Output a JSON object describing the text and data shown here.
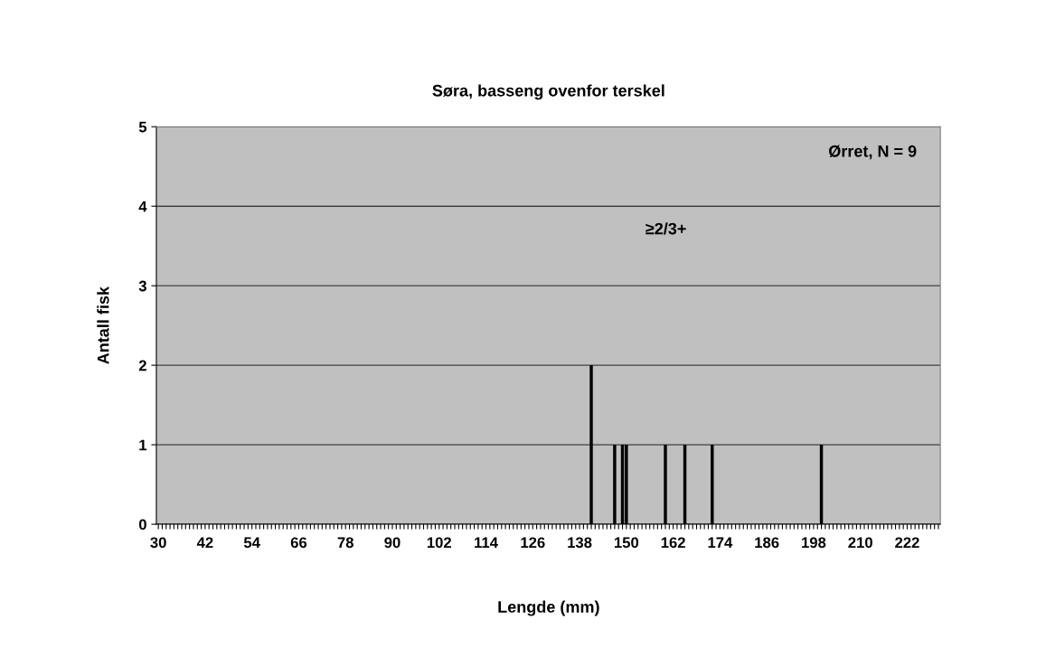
{
  "chart_data": {
    "type": "bar",
    "title": "Søra, basseng ovenfor terskel",
    "xlabel": "Lengde (mm)",
    "ylabel": "Antall fisk",
    "annotations": [
      "Ørret, N = 9",
      "≥2/3+"
    ],
    "categories": [
      "30",
      null,
      null,
      null,
      null,
      null,
      null,
      null,
      null,
      null,
      null,
      null,
      "42",
      null,
      null,
      null,
      null,
      null,
      null,
      null,
      null,
      null,
      null,
      null,
      "54",
      null,
      null,
      null,
      null,
      null,
      null,
      null,
      null,
      null,
      null,
      null,
      "66",
      null,
      null,
      null,
      null,
      null,
      null,
      null,
      null,
      null,
      null,
      null,
      "78",
      null,
      null,
      null,
      null,
      null,
      null,
      null,
      null,
      null,
      null,
      null,
      "90",
      null,
      null,
      null,
      null,
      null,
      null,
      null,
      null,
      null,
      null,
      null,
      "102",
      null,
      null,
      null,
      null,
      null,
      null,
      null,
      null,
      null,
      null,
      null,
      "114",
      null,
      null,
      null,
      null,
      null,
      null,
      null,
      null,
      null,
      null,
      null,
      "126",
      null,
      null,
      null,
      null,
      null,
      null,
      null,
      null,
      null,
      null,
      null,
      "138",
      null,
      null,
      null,
      null,
      null,
      null,
      null,
      null,
      null,
      null,
      null,
      "150",
      null,
      null,
      null,
      null,
      null,
      null,
      null,
      null,
      null,
      null,
      null,
      "162",
      null,
      null,
      null,
      null,
      null,
      null,
      null,
      null,
      null,
      null,
      null,
      "174",
      null,
      null,
      null,
      null,
      null,
      null,
      null,
      null,
      null,
      null,
      null,
      "186",
      null,
      null,
      null,
      null,
      null,
      null,
      null,
      null,
      null,
      null,
      null,
      "198",
      null,
      null,
      null,
      null,
      null,
      null,
      null,
      null,
      null,
      null,
      null,
      "210",
      null,
      null,
      null,
      null,
      null,
      null,
      null,
      null,
      null,
      null,
      null,
      "222",
      null,
      null,
      null,
      null,
      null,
      null,
      null,
      null
    ],
    "values": [
      0,
      0,
      0,
      0,
      0,
      0,
      0,
      0,
      0,
      0,
      0,
      0,
      0,
      0,
      0,
      0,
      0,
      0,
      0,
      0,
      0,
      0,
      0,
      0,
      0,
      0,
      0,
      0,
      0,
      0,
      0,
      0,
      0,
      0,
      0,
      0,
      0,
      0,
      0,
      0,
      0,
      0,
      0,
      0,
      0,
      0,
      0,
      0,
      0,
      0,
      0,
      0,
      0,
      0,
      0,
      0,
      0,
      0,
      0,
      0,
      0,
      0,
      0,
      0,
      0,
      0,
      0,
      0,
      0,
      0,
      0,
      0,
      0,
      0,
      0,
      0,
      0,
      0,
      0,
      0,
      0,
      0,
      0,
      0,
      0,
      0,
      0,
      0,
      0,
      0,
      0,
      0,
      0,
      0,
      0,
      0,
      0,
      0,
      0,
      0,
      0,
      0,
      0,
      0,
      0,
      0,
      0,
      0,
      0,
      0,
      0,
      2,
      0,
      0,
      0,
      0,
      0,
      1,
      0,
      1,
      1,
      0,
      0,
      0,
      0,
      0,
      0,
      0,
      0,
      0,
      1,
      0,
      0,
      0,
      0,
      1,
      0,
      0,
      0,
      0,
      0,
      0,
      1,
      0,
      0,
      0,
      0,
      0,
      0,
      0,
      0,
      0,
      0,
      0,
      0,
      0,
      0,
      0,
      0,
      0,
      0,
      0,
      0,
      0,
      0,
      0,
      0,
      0,
      0,
      0,
      1,
      0,
      0,
      0,
      0,
      0,
      0,
      0,
      0,
      0,
      0,
      0,
      0,
      0,
      0,
      0,
      0,
      0,
      0,
      0,
      0,
      0,
      0,
      0,
      0,
      0,
      0,
      0,
      0,
      0,
      0
    ],
    "color": "#000000",
    "ylim": [
      0,
      5
    ],
    "yticks": [
      0,
      1,
      2,
      3,
      4,
      5
    ],
    "grid": "y",
    "legend": false
  }
}
